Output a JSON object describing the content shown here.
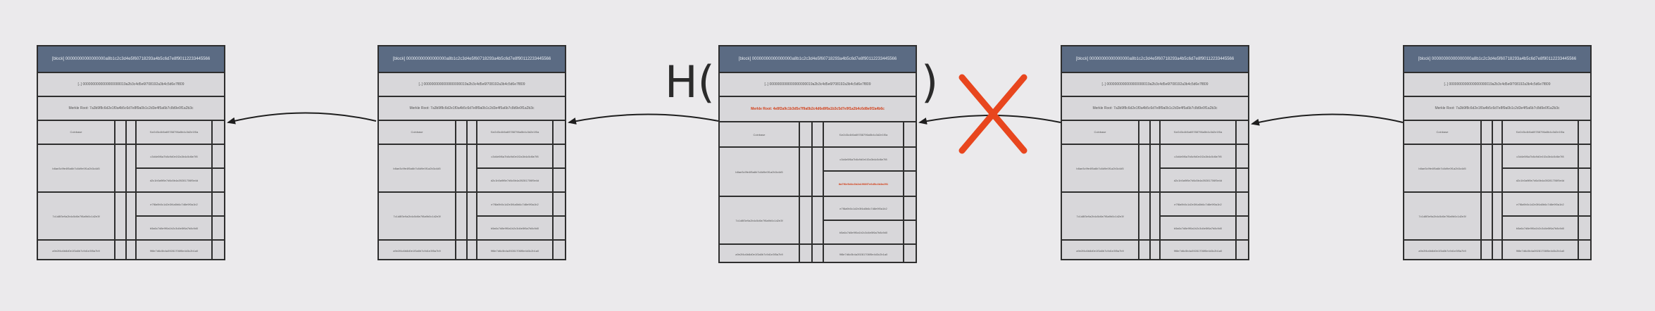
{
  "blocks": [
    {
      "header": "[block] 00000000000000000a8b1c2c3d4e5f60718293a4b5c6d7e8f90112233445566",
      "prev_hash": "[..] 0000000000000000000019a2b3c4d5e6f708192a3b4c5d6e7f809",
      "merkle_root": "Merkle Root: 7a3b9f8c6d2e1f0a4b5c6d7e8f9a0b1c2d3e4f5a6b7c8d9e0f1a2b3c",
      "tx_in": [
        "Coinbase",
        "b8ae3c9fe4f5a6b7c8d9e0f1a2b3c4d5",
        "7c1d8f3e9a2b4c5d6e7f8a9b0c1d2e3f",
        "a9e2f4c6b8d0e1f3a5b7c9d1e3f5a7b9"
      ],
      "tx_out": [
        "f1e2d3c4b5a69788796a5b4c3d2e1f0a",
        "c3d4e5f6a7b8c9d0e1f2a3b4c5d6e7f8",
        "d2c1b0a9f8e7d6c5b4a39281706f5e4d",
        "e7f8a9b0c1d2e3f4a5b6c7d8e9f0a1b2",
        "b5a6c7d8e9f0a1b2c3d4e5f6a7b8c9d0",
        "9f8e7d6c5b4a39281706f5e4d3c2b1a0"
      ]
    },
    {
      "header": "[block] 00000000000000000a8b1c2c3d4e5f60718293a4b5c6d7e8f90112233445566",
      "prev_hash": "[..] 0000000000000000000019a2b3c4d5e6f708192a3b4c5d6e7f809",
      "merkle_root": "Merkle Root: 7a3b9f8c6d2e1f0a4b5c6d7e8f9a0b1c2d3e4f5a6b7c8d9e0f1a2b3c",
      "tx_in": [
        "Coinbase",
        "b8ae3c9fe4f5a6b7c8d9e0f1a2b3c4d5",
        "7c1d8f3e9a2b4c5d6e7f8a9b0c1d2e3f",
        "a9e2f4c6b8d0e1f3a5b7c9d1e3f5a7b9"
      ],
      "tx_out": [
        "f1e2d3c4b5a69788796a5b4c3d2e1f0a",
        "c3d4e5f6a7b8c9d0e1f2a3b4c5d6e7f8",
        "d2c1b0a9f8e7d6c5b4a39281706f5e4d",
        "e7f8a9b0c1d2e3f4a5b6c7d8e9f0a1b2",
        "b5a6c7d8e9f0a1b2c3d4e5f6a7b8c9d0",
        "9f8e7d6c5b4a39281706f5e4d3c2b1a0"
      ]
    },
    {
      "header": "[block] 00000000000000000a8b1c2c3d4e5f60718293a4b5c6d7e8f90112233445566",
      "prev_hash": "[..] 0000000000000000000019a2b3c4d5e6f708192a3b4c5d6e7f809",
      "merkle_root": "Merkle Root: 4e8f2a9c1b3d5e7f9a0b2c4d6e8f0a1b3c5d7e9f1a2b4c6d8e0f2a4b6c",
      "tx_in": [
        "Coinbase",
        "b8ae3c9fe4f5a6b7c8d9e0f1a2b3c4d5",
        "7c1d8f3e9a2b4c5d6e7f8a9b0c1d2e3f",
        "a9e2f4c6b8d0e1f3a5b7c9d1e3f5a7b9"
      ],
      "tx_out": [
        "f1e2d3c4b5a69788796a5b4c3d2e1f0a",
        "c3d4e5f6a7b8c9d0e1f2a3b4c5d6e7f8",
        "8a7f6e5d4c3b2a1908f7e6d5c4b3a291",
        "e7f8a9b0c1d2e3f4a5b6c7d8e9f0a1b2",
        "b5a6c7d8e9f0a1b2c3d4e5f6a7b8c9d0",
        "9f8e7d6c5b4a39281706f5e4d3c2b1a0"
      ]
    },
    {
      "header": "[block] 00000000000000000a8b1c2c3d4e5f60718293a4b5c6d7e8f90112233445566",
      "prev_hash": "[..] 0000000000000000000019a2b3c4d5e6f708192a3b4c5d6e7f809",
      "merkle_root": "Merkle Root: 7a3b9f8c6d2e1f0a4b5c6d7e8f9a0b1c2d3e4f5a6b7c8d9e0f1a2b3c",
      "tx_in": [
        "Coinbase",
        "b8ae3c9fe4f5a6b7c8d9e0f1a2b3c4d5",
        "7c1d8f3e9a2b4c5d6e7f8a9b0c1d2e3f",
        "a9e2f4c6b8d0e1f3a5b7c9d1e3f5a7b9"
      ],
      "tx_out": [
        "f1e2d3c4b5a69788796a5b4c3d2e1f0a",
        "c3d4e5f6a7b8c9d0e1f2a3b4c5d6e7f8",
        "d2c1b0a9f8e7d6c5b4a39281706f5e4d",
        "e7f8a9b0c1d2e3f4a5b6c7d8e9f0a1b2",
        "b5a6c7d8e9f0a1b2c3d4e5f6a7b8c9d0",
        "9f8e7d6c5b4a39281706f5e4d3c2b1a0"
      ]
    },
    {
      "header": "[block] 00000000000000000a8b1c2c3d4e5f60718293a4b5c6d7e8f90112233445566",
      "prev_hash": "[..] 0000000000000000000019a2b3c4d5e6f708192a3b4c5d6e7f809",
      "merkle_root": "Merkle Root: 7a3b9f8c6d2e1f0a4b5c6d7e8f9a0b1c2d3e4f5a6b7c8d9e0f1a2b3c",
      "tx_in": [
        "Coinbase",
        "b8ae3c9fe4f5a6b7c8d9e0f1a2b3c4d5",
        "7c1d8f3e9a2b4c5d6e7f8a9b0c1d2e3f",
        "a9e2f4c6b8d0e1f3a5b7c9d1e3f5a7b9"
      ],
      "tx_out": [
        "f1e2d3c4b5a69788796a5b4c3d2e1f0a",
        "c3d4e5f6a7b8c9d0e1f2a3b4c5d6e7f8",
        "d2c1b0a9f8e7d6c5b4a39281706f5e4d",
        "e7f8a9b0c1d2e3f4a5b6c7d8e9f0a1b2",
        "b5a6c7d8e9f0a1b2c3d4e5f6a7b8c9d0",
        "9f8e7d6c5b4a39281706f5e4d3c2b1a0"
      ]
    }
  ],
  "hash_label": {
    "open": "H(",
    "close": ")"
  },
  "colors": {
    "header_bg": "#5b6b83",
    "highlight": "#d2401a",
    "cross": "#e8461e"
  },
  "icons": {
    "broken_link": "cross-mark-icon",
    "link": "arrow-left-icon"
  }
}
